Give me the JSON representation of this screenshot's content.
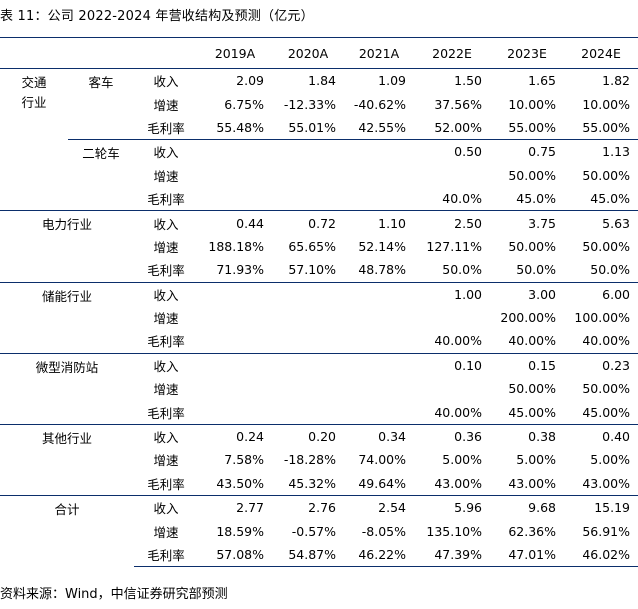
{
  "title": "表 11：公司 2022-2024 年营收结构及预测（亿元）",
  "source": "资料来源：Wind，中信证券研究部预测",
  "years": [
    "2019A",
    "2020A",
    "2021A",
    "2022E",
    "2023E",
    "2024E"
  ],
  "segments": [
    {
      "name": "交通\n行业",
      "subs": [
        {
          "name": "客车",
          "rows": [
            {
              "metric": "收入",
              "values": [
                "2.09",
                "1.84",
                "1.09",
                "1.50",
                "1.65",
                "1.82"
              ]
            },
            {
              "metric": "增速",
              "values": [
                "6.75%",
                "-12.33%",
                "-40.62%",
                "37.56%",
                "10.00%",
                "10.00%"
              ]
            },
            {
              "metric": "毛利率",
              "values": [
                "55.48%",
                "55.01%",
                "42.55%",
                "52.00%",
                "55.00%",
                "55.00%"
              ]
            }
          ]
        },
        {
          "name": "二轮车",
          "rows": [
            {
              "metric": "收入",
              "values": [
                "",
                "",
                "",
                "0.50",
                "0.75",
                "1.13"
              ]
            },
            {
              "metric": "增速",
              "values": [
                "",
                "",
                "",
                "",
                "50.00%",
                "50.00%"
              ]
            },
            {
              "metric": "毛利率",
              "values": [
                "",
                "",
                "",
                "40.0%",
                "45.0%",
                "45.0%"
              ]
            }
          ]
        }
      ]
    },
    {
      "name": "电力行业",
      "rows": [
        {
          "metric": "收入",
          "values": [
            "0.44",
            "0.72",
            "1.10",
            "2.50",
            "3.75",
            "5.63"
          ]
        },
        {
          "metric": "增速",
          "values": [
            "188.18%",
            "65.65%",
            "52.14%",
            "127.11%",
            "50.00%",
            "50.00%"
          ]
        },
        {
          "metric": "毛利率",
          "values": [
            "71.93%",
            "57.10%",
            "48.78%",
            "50.0%",
            "50.0%",
            "50.0%"
          ]
        }
      ]
    },
    {
      "name": "储能行业",
      "rows": [
        {
          "metric": "收入",
          "values": [
            "",
            "",
            "",
            "1.00",
            "3.00",
            "6.00"
          ]
        },
        {
          "metric": "增速",
          "values": [
            "",
            "",
            "",
            "",
            "200.00%",
            "100.00%"
          ]
        },
        {
          "metric": "毛利率",
          "values": [
            "",
            "",
            "",
            "40.00%",
            "40.00%",
            "40.00%"
          ]
        }
      ]
    },
    {
      "name": "微型消防站",
      "rows": [
        {
          "metric": "收入",
          "values": [
            "",
            "",
            "",
            "0.10",
            "0.15",
            "0.23"
          ]
        },
        {
          "metric": "增速",
          "values": [
            "",
            "",
            "",
            "",
            "50.00%",
            "50.00%"
          ]
        },
        {
          "metric": "毛利率",
          "values": [
            "",
            "",
            "",
            "40.00%",
            "45.00%",
            "45.00%"
          ]
        }
      ]
    },
    {
      "name": "其他行业",
      "rows": [
        {
          "metric": "收入",
          "values": [
            "0.24",
            "0.20",
            "0.34",
            "0.36",
            "0.38",
            "0.40"
          ]
        },
        {
          "metric": "增速",
          "values": [
            "7.58%",
            "-18.28%",
            "74.00%",
            "5.00%",
            "5.00%",
            "5.00%"
          ]
        },
        {
          "metric": "毛利率",
          "values": [
            "43.50%",
            "45.32%",
            "49.64%",
            "43.00%",
            "43.00%",
            "43.00%"
          ]
        }
      ]
    },
    {
      "name": "合计",
      "rows": [
        {
          "metric": "收入",
          "values": [
            "2.77",
            "2.76",
            "2.54",
            "5.96",
            "9.68",
            "15.19"
          ]
        },
        {
          "metric": "增速",
          "values": [
            "18.59%",
            "-0.57%",
            "-8.05%",
            "135.10%",
            "62.36%",
            "56.91%"
          ]
        },
        {
          "metric": "毛利率",
          "values": [
            "57.08%",
            "54.87%",
            "46.22%",
            "47.39%",
            "47.01%",
            "46.02%"
          ]
        }
      ]
    }
  ]
}
